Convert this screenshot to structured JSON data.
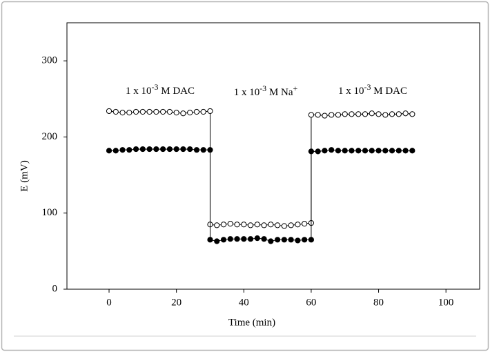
{
  "chart_data": {
    "type": "line",
    "xlabel": "Time (min)",
    "ylabel": "E (mV)",
    "x": [
      0,
      2,
      4,
      6,
      8,
      10,
      12,
      14,
      16,
      18,
      20,
      22,
      24,
      26,
      28,
      30,
      30,
      32,
      34,
      36,
      38,
      40,
      42,
      44,
      46,
      48,
      50,
      52,
      54,
      56,
      58,
      60,
      60,
      62,
      64,
      66,
      68,
      70,
      72,
      74,
      76,
      78,
      80,
      82,
      84,
      86,
      88,
      90
    ],
    "series": [
      {
        "color": "#000000",
        "fill": "#ffffff",
        "values": [
          234,
          233,
          232,
          232,
          233,
          233,
          233,
          233,
          233,
          233,
          232,
          231,
          232,
          233,
          233,
          234,
          85,
          84,
          85,
          86,
          85,
          85,
          84,
          85,
          84,
          85,
          84,
          83,
          84,
          85,
          86,
          87,
          229,
          229,
          228,
          229,
          229,
          230,
          230,
          230,
          230,
          231,
          230,
          229,
          230,
          230,
          231,
          230
        ]
      },
      {
        "color": "#000000",
        "fill": "#000000",
        "values": [
          182,
          182,
          183,
          183,
          184,
          184,
          184,
          184,
          184,
          184,
          184,
          184,
          184,
          183,
          183,
          183,
          65,
          63,
          65,
          66,
          66,
          66,
          66,
          67,
          66,
          63,
          65,
          65,
          65,
          64,
          65,
          65,
          181,
          181,
          182,
          183,
          182,
          182,
          182,
          182,
          182,
          182,
          182,
          182,
          182,
          182,
          182,
          182
        ]
      }
    ],
    "xlim": [
      -12.5,
      110
    ],
    "ylim": [
      0,
      350
    ],
    "xticks": [
      0,
      20,
      40,
      60,
      80,
      100
    ],
    "yticks": [
      0,
      100,
      200,
      300
    ],
    "annotations": [
      [
        {
          "text": "1 x 10"
        },
        {
          "text": "-3",
          "sup": true
        },
        {
          "text": " M DAC"
        }
      ],
      [
        {
          "text": "1 x 10"
        },
        {
          "text": "-3",
          "sup": true
        },
        {
          "text": " M Na"
        },
        {
          "text": "+",
          "sup": true
        }
      ],
      [
        {
          "text": "1 x 10"
        },
        {
          "text": "-3",
          "sup": true
        },
        {
          "text": " M DAC"
        }
      ]
    ]
  }
}
